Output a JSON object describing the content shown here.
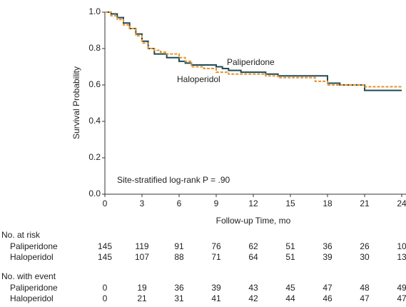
{
  "chart_data": {
    "type": "step",
    "xlabel": "Follow-up Time, mo",
    "ylabel": "Survival Probability",
    "annotation": "Site-stratified log-rank P = .90",
    "xlim": [
      0,
      24
    ],
    "xticks": [
      0,
      3,
      6,
      9,
      12,
      15,
      18,
      21,
      24
    ],
    "ylim": [
      0,
      1
    ],
    "yticks": [
      {
        "value": 0,
        "label": "0.0"
      },
      0.2,
      0.4,
      0.6,
      0.8,
      {
        "value": 1,
        "label": "1.0"
      }
    ],
    "series": [
      {
        "name": "Paliperidone",
        "color": "#1f4a57",
        "dashed": false,
        "x": [
          0,
          0.5,
          1,
          1.5,
          2,
          2.5,
          3,
          3.5,
          4,
          5,
          6,
          6.5,
          7,
          8,
          9,
          9.5,
          10,
          11,
          12,
          13,
          14,
          15,
          17,
          18,
          19,
          21,
          24
        ],
        "values": [
          1.0,
          0.99,
          0.97,
          0.94,
          0.91,
          0.88,
          0.84,
          0.8,
          0.77,
          0.75,
          0.73,
          0.72,
          0.71,
          0.71,
          0.7,
          0.69,
          0.68,
          0.67,
          0.67,
          0.66,
          0.65,
          0.65,
          0.65,
          0.61,
          0.6,
          0.57,
          0.57
        ]
      },
      {
        "name": "Haloperidol",
        "color": "#e8922a",
        "dashed": true,
        "x": [
          0,
          0.5,
          1,
          1.5,
          2,
          2.5,
          3,
          3.5,
          4,
          4.5,
          5,
          6,
          6.5,
          7,
          8,
          9,
          10,
          12,
          13,
          14,
          15,
          17,
          18,
          21,
          24
        ],
        "values": [
          1.0,
          0.98,
          0.96,
          0.93,
          0.91,
          0.87,
          0.83,
          0.8,
          0.79,
          0.78,
          0.77,
          0.75,
          0.73,
          0.7,
          0.69,
          0.67,
          0.66,
          0.66,
          0.65,
          0.64,
          0.64,
          0.62,
          0.6,
          0.59,
          0.59
        ]
      }
    ],
    "risk_table": {
      "title": "No. at risk",
      "rows": [
        {
          "name": "Paliperidone",
          "values": [
            145,
            119,
            91,
            76,
            62,
            51,
            36,
            26,
            10
          ]
        },
        {
          "name": "Haloperidol",
          "values": [
            145,
            107,
            88,
            71,
            64,
            51,
            39,
            30,
            13
          ]
        }
      ]
    },
    "event_table": {
      "title": "No. with event",
      "rows": [
        {
          "name": "Paliperidone",
          "values": [
            0,
            19,
            36,
            39,
            43,
            45,
            47,
            48,
            49
          ]
        },
        {
          "name": "Haloperidol",
          "values": [
            0,
            21,
            31,
            41,
            42,
            44,
            46,
            47,
            47
          ]
        }
      ]
    }
  }
}
